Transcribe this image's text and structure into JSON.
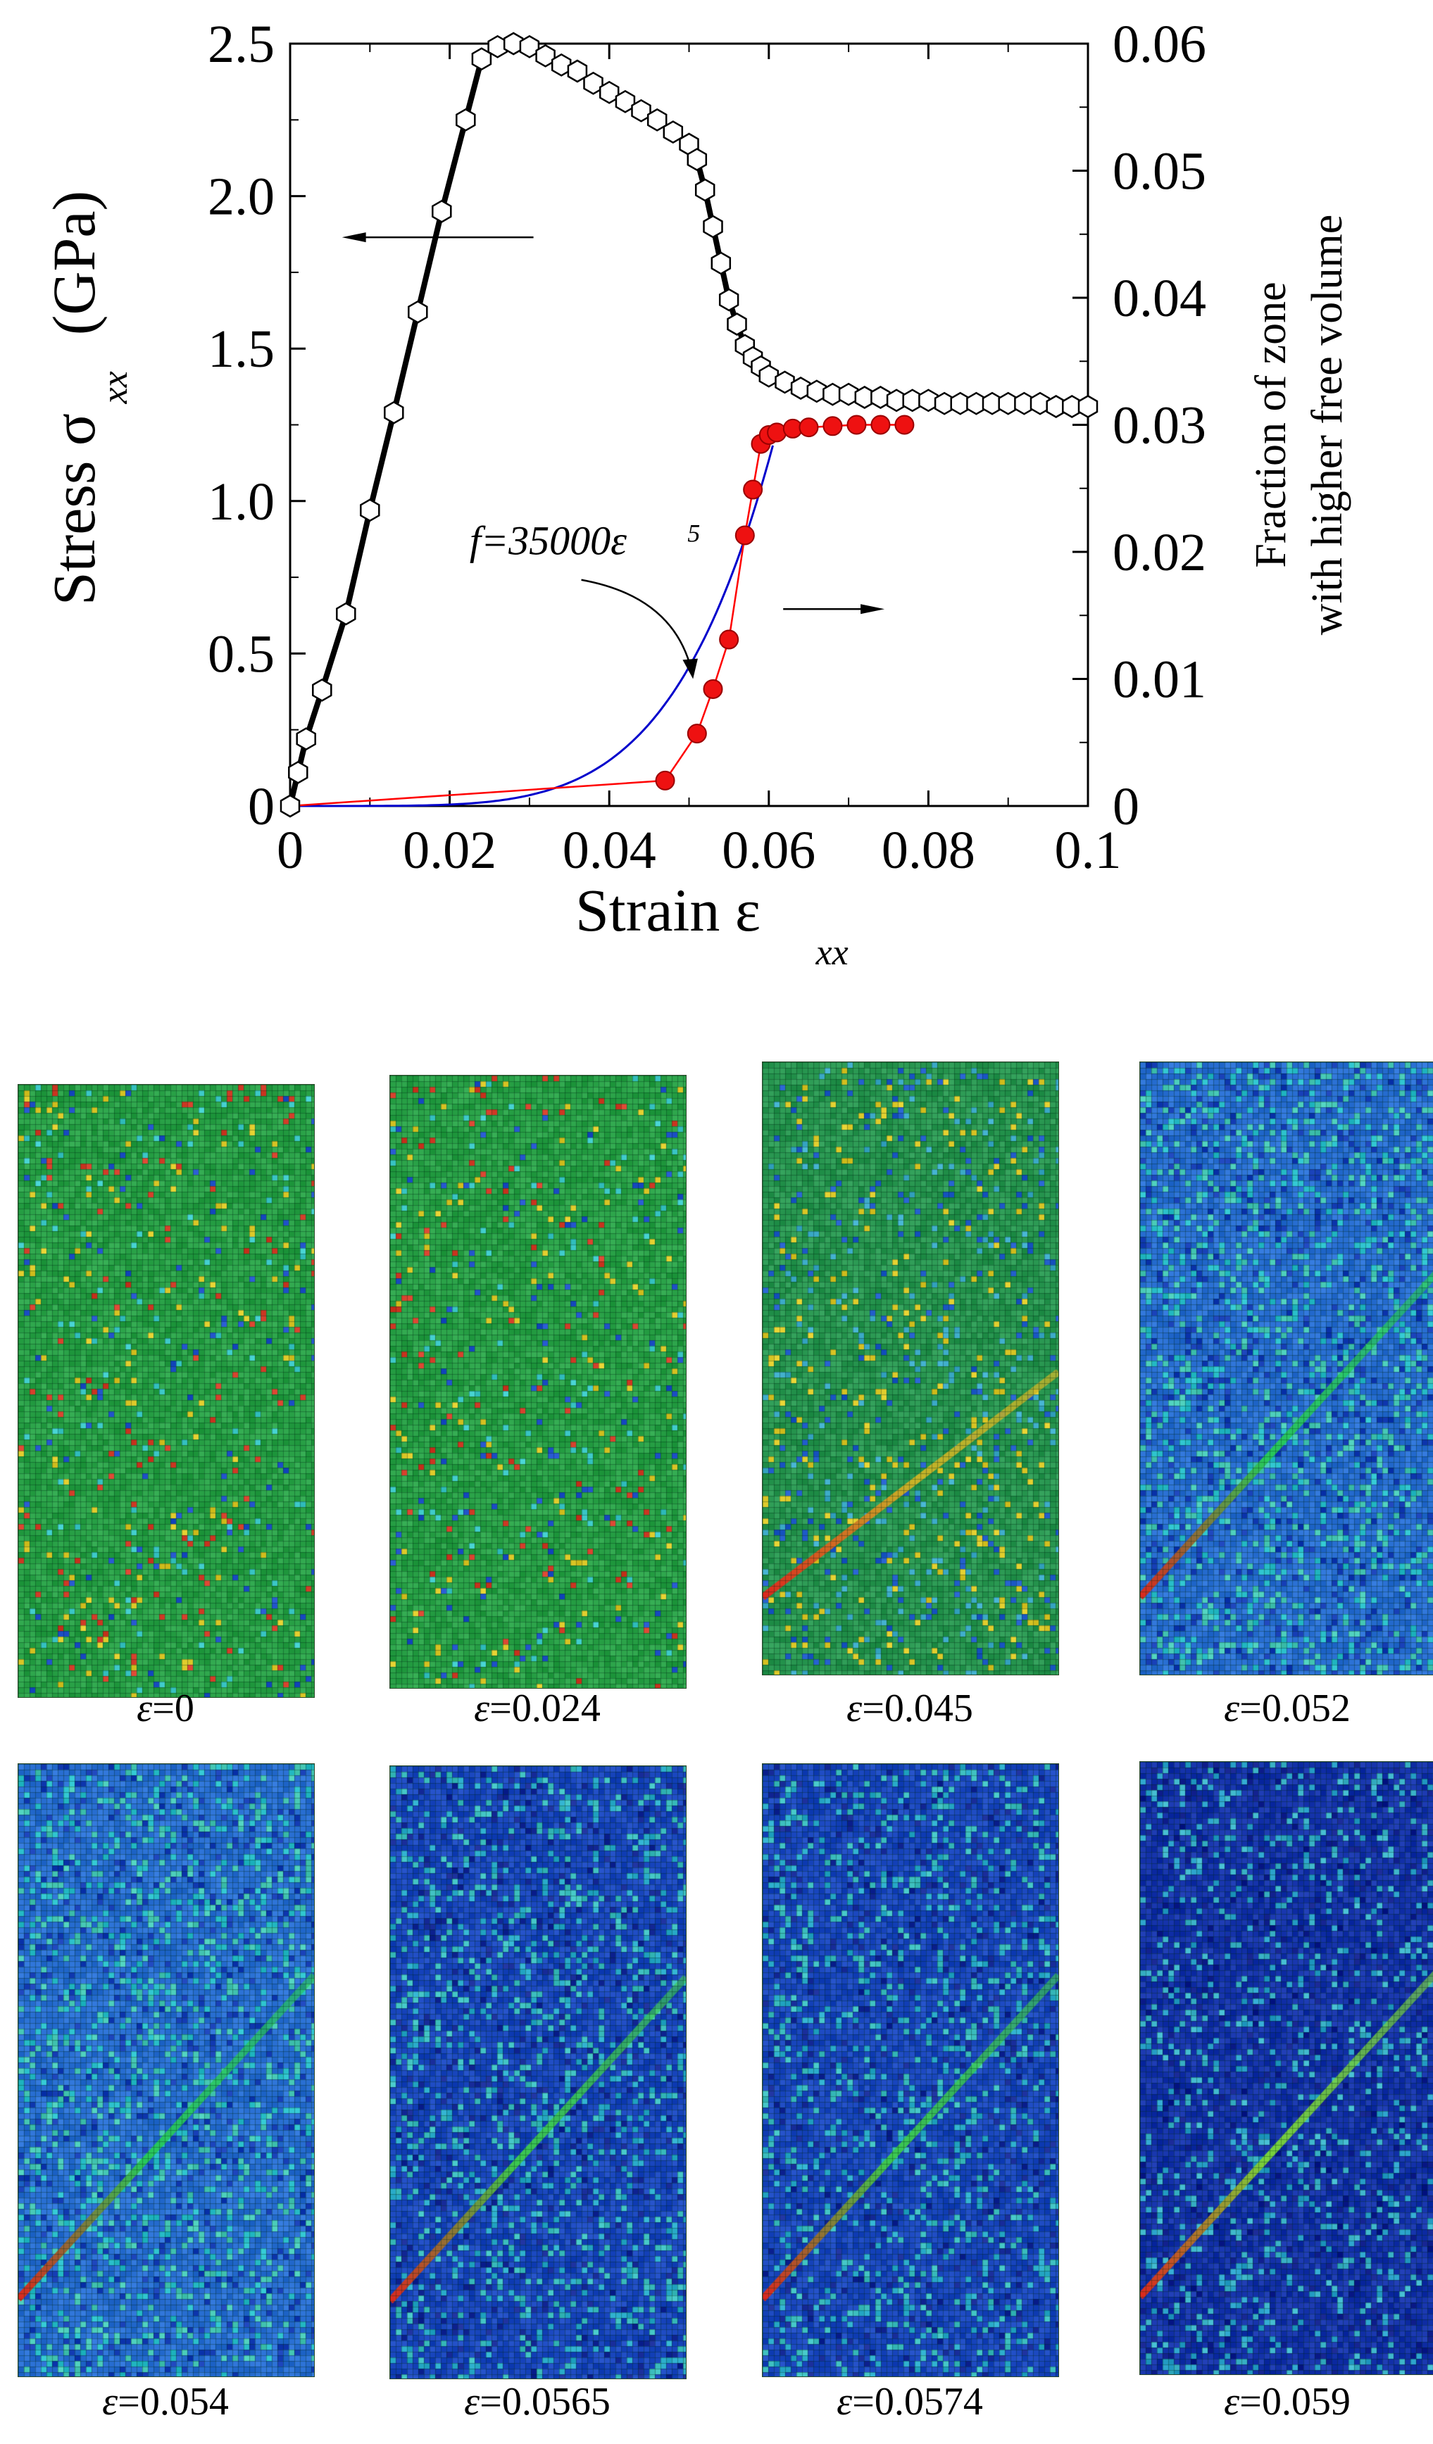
{
  "chart_data": {
    "type": "line",
    "xlabel": "Strain ε",
    "xlabel_sub": "xx",
    "ylabel": "Stress σ",
    "ylabel_sub": "xx",
    "ylabel_unit": "(GPa)",
    "y2label_line1": "Fraction of zone",
    "y2label_line2": "with higher free volume",
    "xlim": [
      0,
      0.1
    ],
    "ylim": [
      0,
      2.5
    ],
    "y2lim": [
      0,
      0.06
    ],
    "x_ticks": [
      "0",
      "0.02",
      "0.04",
      "0.06",
      "0.08",
      "0.1"
    ],
    "y_ticks": [
      "0",
      "0.5",
      "1.0",
      "1.5",
      "2.0",
      "2.5"
    ],
    "y2_ticks": [
      "0",
      "0.01",
      "0.02",
      "0.03",
      "0.04",
      "0.05",
      "0.06"
    ],
    "annotation": "f=35000ε",
    "annotation_exp": "5",
    "series": [
      {
        "axis": "left",
        "color": "#000000",
        "marker": "hexagon-open",
        "x": [
          0,
          0.001,
          0.002,
          0.004,
          0.007,
          0.01,
          0.013,
          0.016,
          0.019,
          0.022,
          0.024,
          0.026,
          0.028,
          0.03,
          0.032,
          0.034,
          0.036,
          0.038,
          0.04,
          0.042,
          0.044,
          0.046,
          0.048,
          0.05,
          0.051,
          0.052,
          0.053,
          0.054,
          0.055,
          0.056,
          0.057,
          0.058,
          0.059,
          0.06,
          0.062,
          0.064,
          0.066,
          0.068,
          0.07,
          0.072,
          0.074,
          0.076,
          0.078,
          0.08,
          0.082,
          0.084,
          0.086,
          0.088,
          0.09,
          0.092,
          0.094,
          0.096,
          0.098,
          0.1
        ],
        "y": [
          0,
          0.11,
          0.22,
          0.38,
          0.63,
          0.97,
          1.29,
          1.62,
          1.95,
          2.25,
          2.45,
          2.49,
          2.5,
          2.49,
          2.46,
          2.43,
          2.41,
          2.37,
          2.34,
          2.31,
          2.28,
          2.25,
          2.21,
          2.17,
          2.12,
          2.02,
          1.9,
          1.78,
          1.66,
          1.58,
          1.51,
          1.47,
          1.44,
          1.41,
          1.39,
          1.37,
          1.36,
          1.35,
          1.35,
          1.34,
          1.34,
          1.33,
          1.33,
          1.33,
          1.32,
          1.32,
          1.32,
          1.32,
          1.32,
          1.32,
          1.32,
          1.31,
          1.31,
          1.31
        ]
      },
      {
        "axis": "right",
        "color": "#ff0000",
        "marker": "circle-filled",
        "x": [
          0,
          0.047,
          0.051,
          0.053,
          0.055,
          0.057,
          0.058,
          0.059,
          0.06,
          0.061,
          0.063,
          0.065,
          0.068,
          0.071,
          0.074,
          0.077
        ],
        "y": [
          0,
          0.002,
          0.0057,
          0.0092,
          0.0131,
          0.0213,
          0.0249,
          0.0285,
          0.0292,
          0.0294,
          0.0297,
          0.0298,
          0.0299,
          0.03,
          0.03,
          0.03
        ]
      },
      {
        "axis": "right",
        "color": "#0000cc",
        "marker": "none",
        "formula": "f=35000ε^5",
        "x_range": [
          0,
          0.0605
        ]
      }
    ]
  },
  "panels": [
    {
      "label": "=0",
      "scheme": "green"
    },
    {
      "label": "=0.024",
      "scheme": "green"
    },
    {
      "label": "=0.045",
      "scheme": "green-band"
    },
    {
      "label": "=0.052",
      "scheme": "blue-light"
    },
    {
      "label": "=0.054",
      "scheme": "blue-light"
    },
    {
      "label": "=0.0565",
      "scheme": "blue"
    },
    {
      "label": "=0.0574",
      "scheme": "blue"
    },
    {
      "label": "=0.059",
      "scheme": "blue-dark"
    }
  ],
  "panel_symbol": "ε"
}
